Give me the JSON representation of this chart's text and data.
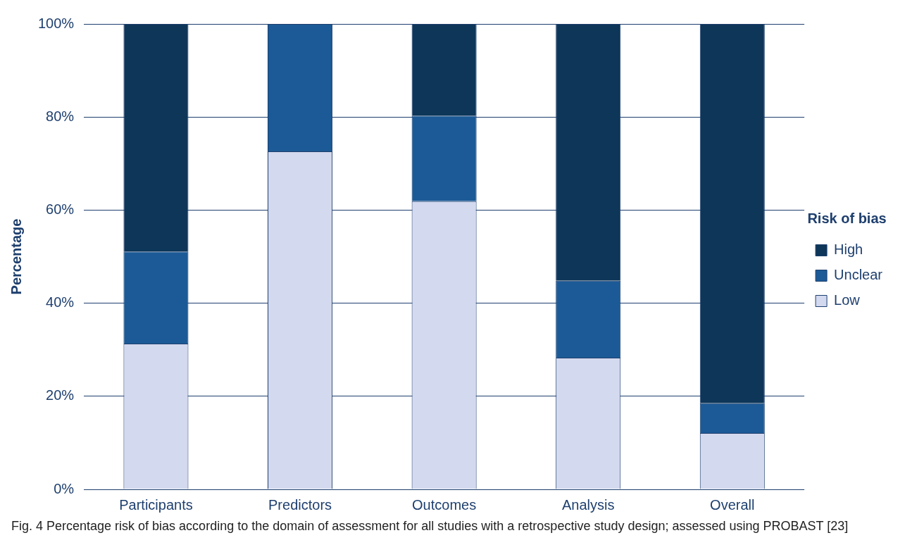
{
  "chart_data": {
    "type": "bar",
    "stacked": true,
    "ylabel": "Percentage",
    "legend_title": "Risk of bias",
    "legend": "right",
    "grid": "y",
    "categories": [
      "Participants",
      "Predictors",
      "Outcomes",
      "Analysis",
      "Overall"
    ],
    "series": [
      {
        "name": "Low",
        "color": "#d3d9ef",
        "values": [
          31.3,
          72.6,
          61.9,
          28.3,
          12.1
        ]
      },
      {
        "name": "Unclear",
        "color": "#1b5a96",
        "values": [
          19.8,
          27.4,
          18.4,
          16.5,
          6.4
        ]
      },
      {
        "name": "High",
        "color": "#0d3658",
        "values": [
          48.9,
          0,
          19.7,
          55.2,
          81.5
        ]
      }
    ],
    "ylim": [
      0,
      100
    ],
    "yticks": [
      {
        "value": 0,
        "label": "0%"
      },
      {
        "value": 20,
        "label": "20%"
      },
      {
        "value": 40,
        "label": "40%"
      },
      {
        "value": 60,
        "label": "60%"
      },
      {
        "value": 80,
        "label": "80%"
      },
      {
        "value": 100,
        "label": "100%"
      }
    ],
    "annotations": [
      "Fig. 4 Percentage risk of bias according to the domain of assessment for all studies with a retrospective study design; assessed using PROBAST [23]"
    ]
  }
}
